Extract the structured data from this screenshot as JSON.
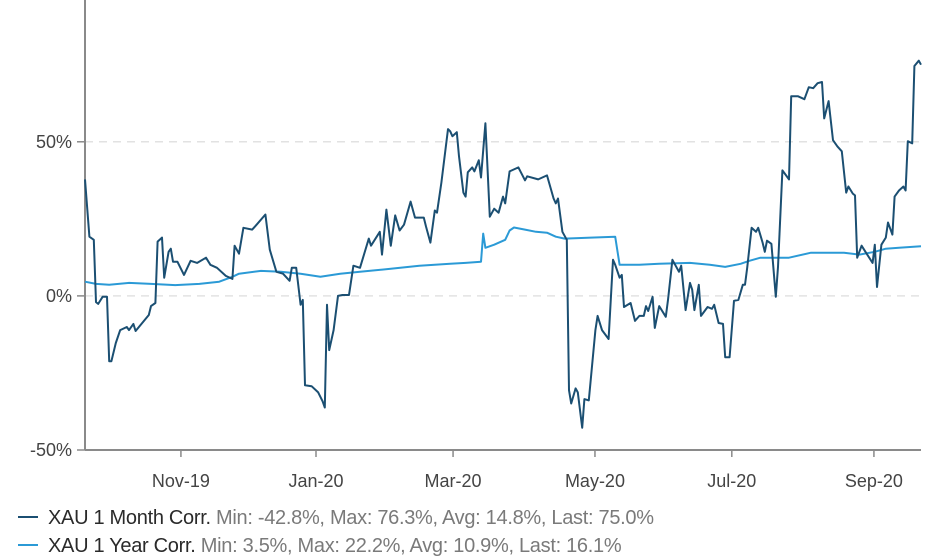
{
  "chart_data": {
    "type": "line",
    "x_unit": "days since start of chart window",
    "xlim": [
      0,
      380
    ],
    "ylim": [
      -50,
      96
    ],
    "ylabel": "",
    "xlabel": "",
    "grid": "horizontal dashed at labelled y ticks",
    "y_ticks": [
      {
        "value": 50,
        "label": "50%"
      },
      {
        "value": 0,
        "label": "0%"
      },
      {
        "value": -50,
        "label": "-50%"
      }
    ],
    "x_ticks": [
      {
        "value": 43.6,
        "label": "Nov-19"
      },
      {
        "value": 105,
        "label": "Jan-20"
      },
      {
        "value": 167.3,
        "label": "Mar-20"
      },
      {
        "value": 231.8,
        "label": "May-20"
      },
      {
        "value": 294,
        "label": "Jul-20"
      },
      {
        "value": 358.6,
        "label": "Sep-20"
      }
    ],
    "legend_position": "bottom",
    "series": [
      {
        "name": "XAU 1 Month Corr.",
        "stats": "Min: -42.8%, Max: 76.3%, Avg: 14.8%, Last: 75.0%",
        "color": "#1b4f72",
        "points": [
          [
            0,
            37.8
          ],
          [
            2,
            19.2
          ],
          [
            4,
            18.2
          ],
          [
            5,
            -2.0
          ],
          [
            6,
            -2.6
          ],
          [
            8,
            -0.3
          ],
          [
            10,
            -0.3
          ],
          [
            11,
            -21.2
          ],
          [
            12,
            -21.2
          ],
          [
            14,
            -15.3
          ],
          [
            16,
            -11.1
          ],
          [
            19,
            -10.1
          ],
          [
            20,
            -11.1
          ],
          [
            22,
            -9.1
          ],
          [
            23,
            -11.4
          ],
          [
            26,
            -8.8
          ],
          [
            29,
            -6.2
          ],
          [
            30,
            -3.3
          ],
          [
            32,
            -2.3
          ],
          [
            33,
            17.6
          ],
          [
            35,
            18.9
          ],
          [
            36,
            5.9
          ],
          [
            38,
            14.3
          ],
          [
            39,
            15.3
          ],
          [
            40,
            11.1
          ],
          [
            42,
            11.1
          ],
          [
            45,
            6.8
          ],
          [
            48,
            11.4
          ],
          [
            51,
            10.7
          ],
          [
            55,
            12.4
          ],
          [
            57,
            10.1
          ],
          [
            60,
            9.1
          ],
          [
            64,
            6.5
          ],
          [
            67,
            5.5
          ],
          [
            68,
            16.3
          ],
          [
            70,
            13.7
          ],
          [
            72,
            22.1
          ],
          [
            76,
            21.5
          ],
          [
            78,
            23.1
          ],
          [
            82,
            26.4
          ],
          [
            84,
            15.0
          ],
          [
            87,
            7.8
          ],
          [
            90,
            7.2
          ],
          [
            93,
            4.9
          ],
          [
            94,
            9.1
          ],
          [
            96,
            9.1
          ],
          [
            98,
            -2.9
          ],
          [
            99,
            -1.3
          ],
          [
            100,
            -29.0
          ],
          [
            103,
            -29.3
          ],
          [
            106,
            -31.3
          ],
          [
            108,
            -34.2
          ],
          [
            109,
            -36.2
          ],
          [
            110,
            -2.9
          ],
          [
            111,
            -17.6
          ],
          [
            113,
            -11.1
          ],
          [
            115,
            0
          ],
          [
            117,
            0.3
          ],
          [
            120,
            0.3
          ],
          [
            122,
            9.8
          ],
          [
            125,
            9.1
          ],
          [
            129,
            18.6
          ],
          [
            130,
            16.3
          ],
          [
            134,
            20.8
          ],
          [
            135,
            13.4
          ],
          [
            137,
            28.0
          ],
          [
            139,
            16.3
          ],
          [
            141,
            26.1
          ],
          [
            143,
            21.2
          ],
          [
            145,
            23.1
          ],
          [
            148,
            30.6
          ],
          [
            150,
            25.4
          ],
          [
            154,
            25.4
          ],
          [
            155,
            22.5
          ],
          [
            157,
            17.3
          ],
          [
            159,
            27.7
          ],
          [
            160,
            27.0
          ],
          [
            162,
            36.8
          ],
          [
            165,
            54.1
          ],
          [
            166,
            53.4
          ],
          [
            167,
            51.8
          ],
          [
            169,
            53.1
          ],
          [
            170,
            45.3
          ],
          [
            172,
            33.5
          ],
          [
            173,
            32.2
          ],
          [
            174,
            40.1
          ],
          [
            176,
            41.7
          ],
          [
            177,
            40.4
          ],
          [
            179,
            44.0
          ],
          [
            180,
            38.4
          ],
          [
            182,
            56.0
          ],
          [
            184,
            25.7
          ],
          [
            186,
            28.3
          ],
          [
            188,
            27.0
          ],
          [
            190,
            32.2
          ],
          [
            191,
            30.0
          ],
          [
            193,
            40.4
          ],
          [
            197,
            41.7
          ],
          [
            200,
            37.5
          ],
          [
            201,
            38.8
          ],
          [
            206,
            37.8
          ],
          [
            210,
            39.1
          ],
          [
            213,
            31.6
          ],
          [
            214,
            30.0
          ],
          [
            215,
            31.6
          ],
          [
            217,
            20.8
          ],
          [
            219,
            18.2
          ],
          [
            220,
            -30.6
          ],
          [
            221,
            -34.9
          ],
          [
            223,
            -30.0
          ],
          [
            224,
            -31.3
          ],
          [
            226,
            -42.8
          ],
          [
            227,
            -33.5
          ],
          [
            229,
            -33.9
          ],
          [
            232,
            -11.1
          ],
          [
            233,
            -6.5
          ],
          [
            235,
            -11.1
          ],
          [
            238,
            -14.0
          ],
          [
            240,
            11.7
          ],
          [
            241,
            10.1
          ],
          [
            243,
            5.9
          ],
          [
            244,
            6.8
          ],
          [
            245,
            -3.6
          ],
          [
            248,
            -2.3
          ],
          [
            250,
            -8.1
          ],
          [
            252,
            -6.5
          ],
          [
            254,
            -6.5
          ],
          [
            255,
            -3.3
          ],
          [
            256,
            -4.9
          ],
          [
            258,
            -0.3
          ],
          [
            259,
            -10.4
          ],
          [
            261,
            -3.3
          ],
          [
            264,
            -6.8
          ],
          [
            265,
            -1.3
          ],
          [
            267,
            11.7
          ],
          [
            270,
            7.8
          ],
          [
            271,
            9.8
          ],
          [
            273,
            -4.6
          ],
          [
            275,
            4.2
          ],
          [
            276,
            2.0
          ],
          [
            277,
            -4.6
          ],
          [
            279,
            3.6
          ],
          [
            280,
            -6.5
          ],
          [
            283,
            -3.6
          ],
          [
            285,
            -4.2
          ],
          [
            286,
            -2.9
          ],
          [
            288,
            -8.8
          ],
          [
            290,
            -9.1
          ],
          [
            291,
            -19.9
          ],
          [
            293,
            -19.9
          ],
          [
            295,
            -1.6
          ],
          [
            297,
            -1.3
          ],
          [
            299,
            3.6
          ],
          [
            300,
            3.6
          ],
          [
            301,
            9.1
          ],
          [
            303,
            22.1
          ],
          [
            305,
            20.8
          ],
          [
            306,
            22.1
          ],
          [
            308,
            17.3
          ],
          [
            309,
            14.3
          ],
          [
            310,
            17.9
          ],
          [
            312,
            16.9
          ],
          [
            314,
            -0.3
          ],
          [
            315,
            9.4
          ],
          [
            317,
            40.7
          ],
          [
            320,
            37.8
          ],
          [
            321,
            64.8
          ],
          [
            324,
            64.8
          ],
          [
            327,
            63.8
          ],
          [
            329,
            67.7
          ],
          [
            331,
            67.4
          ],
          [
            333,
            69.0
          ],
          [
            335,
            69.4
          ],
          [
            336,
            57.6
          ],
          [
            338,
            63.2
          ],
          [
            340,
            50.5
          ],
          [
            342,
            48.5
          ],
          [
            344,
            46.9
          ],
          [
            346,
            33.5
          ],
          [
            347,
            35.5
          ],
          [
            349,
            33.2
          ],
          [
            350,
            32.6
          ],
          [
            351,
            12.4
          ],
          [
            353,
            16.3
          ],
          [
            355,
            14.0
          ],
          [
            358,
            10.7
          ],
          [
            359,
            16.6
          ],
          [
            360,
            2.9
          ],
          [
            362,
            16.6
          ],
          [
            364,
            18.9
          ],
          [
            365,
            23.8
          ],
          [
            367,
            19.9
          ],
          [
            368,
            32.2
          ],
          [
            370,
            34.2
          ],
          [
            372,
            35.5
          ],
          [
            373,
            34.2
          ],
          [
            374,
            50.2
          ],
          [
            376,
            49.5
          ],
          [
            377,
            74.6
          ],
          [
            379,
            76.3
          ],
          [
            380,
            75.0
          ]
        ]
      },
      {
        "name": "XAU 1 Year Corr.",
        "stats": "Min: 3.5%, Max: 22.2%, Avg: 10.9%, Last: 16.1%",
        "color": "#2b9ad6",
        "points": [
          [
            0,
            4.6
          ],
          [
            5,
            3.9
          ],
          [
            11,
            3.6
          ],
          [
            20,
            4.2
          ],
          [
            30,
            3.9
          ],
          [
            41,
            3.5
          ],
          [
            52,
            3.9
          ],
          [
            61,
            4.6
          ],
          [
            67,
            6.2
          ],
          [
            70,
            7.2
          ],
          [
            80,
            8.1
          ],
          [
            89,
            7.8
          ],
          [
            98,
            7.2
          ],
          [
            107,
            6.2
          ],
          [
            116,
            7.2
          ],
          [
            125,
            7.8
          ],
          [
            139,
            8.8
          ],
          [
            152,
            9.8
          ],
          [
            166,
            10.4
          ],
          [
            173,
            10.7
          ],
          [
            180,
            11.1
          ],
          [
            181,
            20.2
          ],
          [
            182,
            15.6
          ],
          [
            186,
            16.6
          ],
          [
            191,
            18.2
          ],
          [
            193,
            21.2
          ],
          [
            195,
            22.2
          ],
          [
            200,
            21.5
          ],
          [
            205,
            20.8
          ],
          [
            210,
            20.5
          ],
          [
            214,
            19.2
          ],
          [
            218,
            18.6
          ],
          [
            230,
            18.9
          ],
          [
            241,
            19.2
          ],
          [
            243,
            10.1
          ],
          [
            252,
            10.1
          ],
          [
            261,
            10.4
          ],
          [
            275,
            10.7
          ],
          [
            284,
            10.1
          ],
          [
            291,
            9.4
          ],
          [
            298,
            10.4
          ],
          [
            302,
            11.4
          ],
          [
            307,
            12.4
          ],
          [
            320,
            12.4
          ],
          [
            330,
            14.0
          ],
          [
            345,
            14.0
          ],
          [
            352,
            13.4
          ],
          [
            359,
            14.3
          ],
          [
            364,
            15.3
          ],
          [
            370,
            15.6
          ],
          [
            380,
            16.1
          ]
        ]
      }
    ]
  }
}
